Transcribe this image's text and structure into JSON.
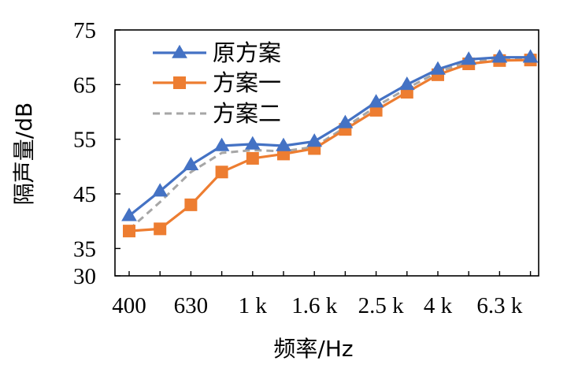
{
  "chart_data": {
    "type": "line",
    "xlabel": "频率/Hz",
    "ylabel": "隔声量/dB",
    "ylim": [
      30,
      75
    ],
    "y_ticks": [
      30,
      35,
      45,
      55,
      65,
      75
    ],
    "x_tick_labels": [
      "400",
      "630",
      "1 k",
      "1.6 k",
      "2.5 k",
      "4 k",
      "6.3 k"
    ],
    "categories": [
      "400",
      "500",
      "630",
      "800",
      "1 k",
      "1.25 k",
      "1.6 k",
      "2 k",
      "2.5 k",
      "3.15 k",
      "4 k",
      "5 k",
      "6.3 k",
      "8 k"
    ],
    "grid": false,
    "legend_position": "top-left",
    "series": [
      {
        "name": "原方案",
        "color": "#4472C4",
        "marker": "triangle",
        "dash": "solid",
        "values": [
          41.0,
          45.5,
          50.3,
          53.8,
          54.1,
          53.8,
          54.6,
          58.0,
          61.8,
          65.0,
          67.8,
          69.6,
          70.0,
          70.0
        ]
      },
      {
        "name": "方案一",
        "color": "#ED7D31",
        "marker": "square",
        "dash": "solid",
        "values": [
          38.2,
          38.6,
          43.0,
          49.0,
          51.5,
          52.3,
          53.3,
          56.8,
          60.3,
          63.6,
          66.8,
          68.8,
          69.4,
          69.5
        ]
      },
      {
        "name": "方案二",
        "color": "#A6A6A6",
        "marker": "none",
        "dash": "dashed",
        "values": [
          38.5,
          43.5,
          49.0,
          52.5,
          53.0,
          52.8,
          53.6,
          57.2,
          61.0,
          64.3,
          67.3,
          69.2,
          69.7,
          69.8
        ]
      }
    ]
  }
}
